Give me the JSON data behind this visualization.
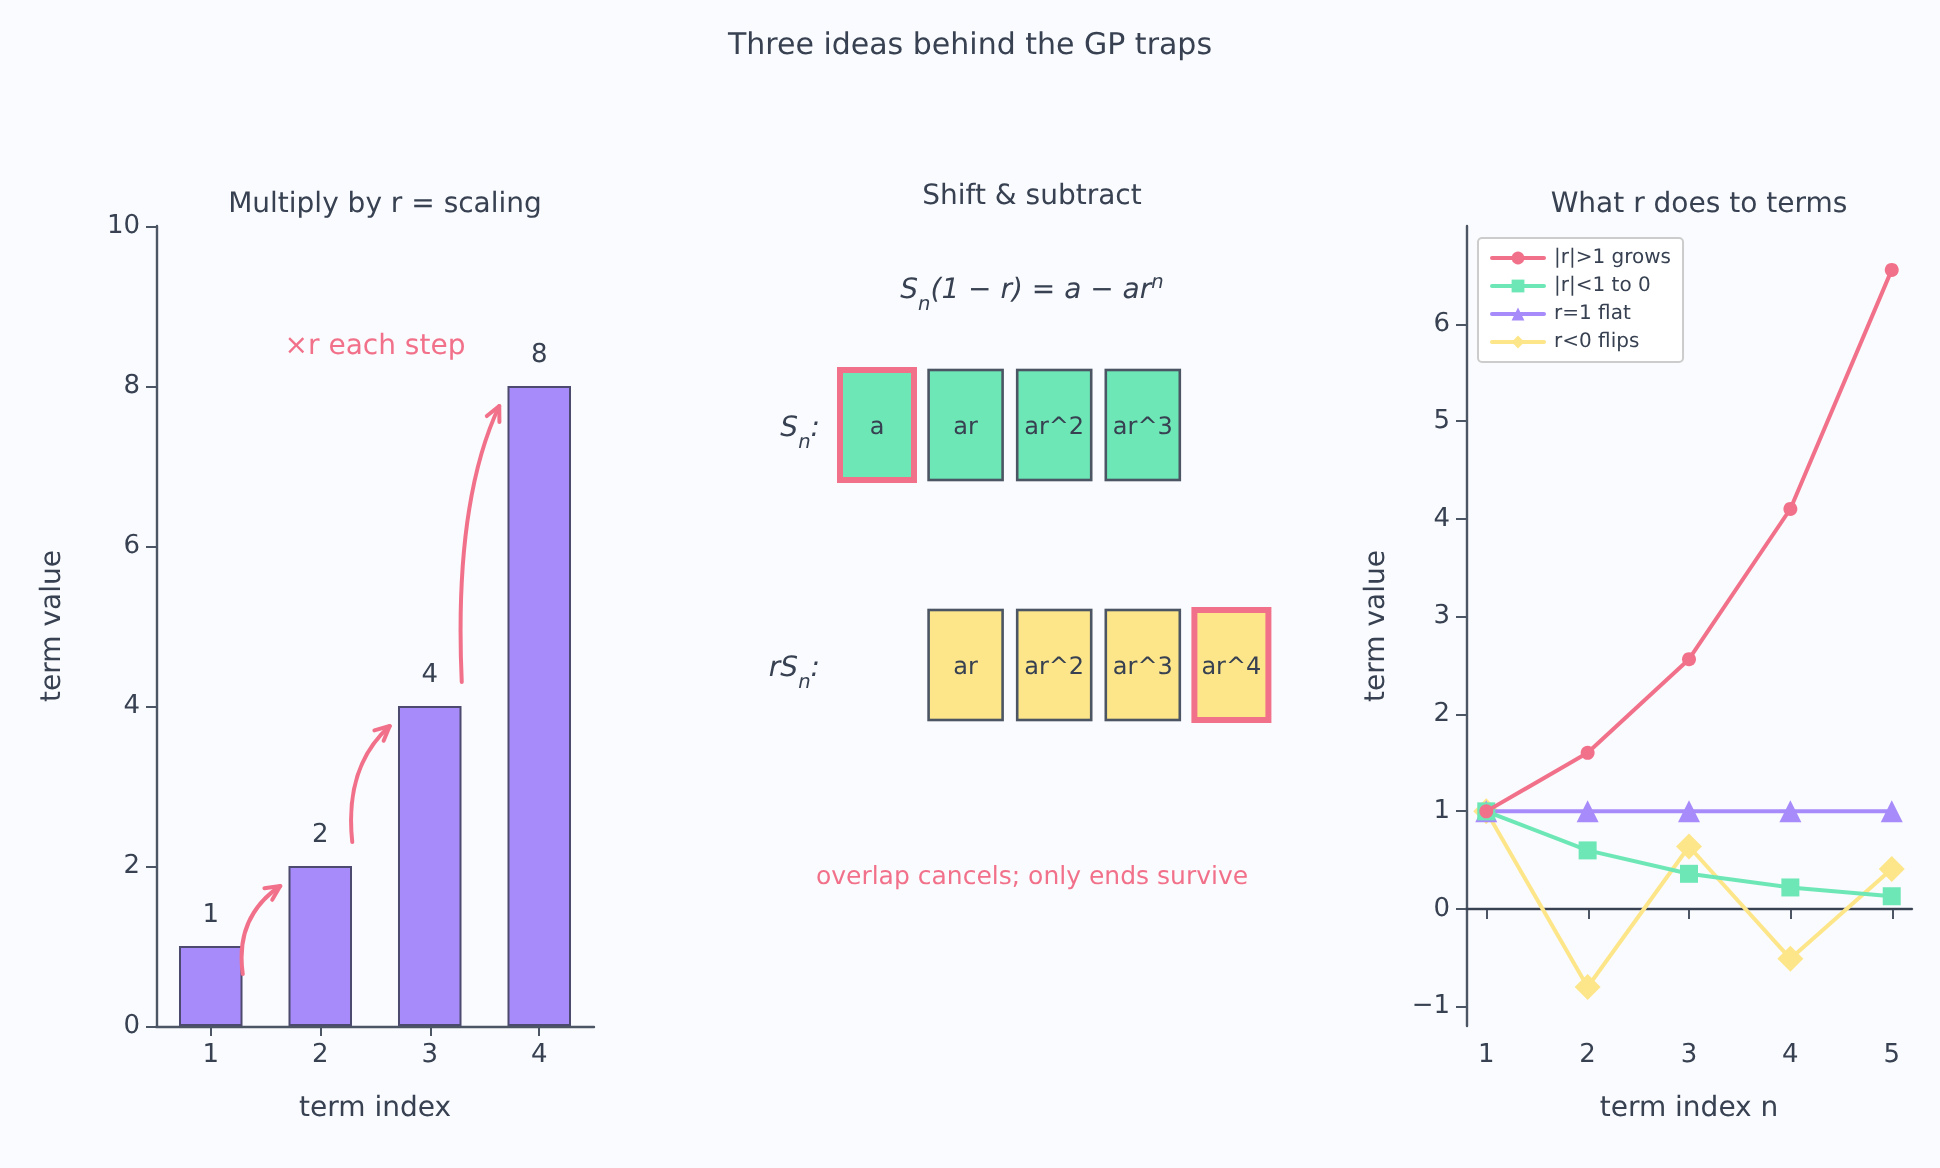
{
  "chart_data": [
    {
      "type": "other",
      "title": "Three ideas behind the GP traps"
    },
    {
      "type": "bar",
      "title": "Multiply by r = scaling",
      "xlabel": "term index",
      "ylabel": "term value",
      "categories": [
        "1",
        "2",
        "3",
        "4"
      ],
      "values": [
        1,
        2,
        4,
        8
      ],
      "color": "#a78bfa",
      "ylim": [
        0,
        10
      ],
      "yticks": [
        0,
        2,
        4,
        6,
        8,
        10
      ],
      "data_labels": true,
      "grid": false,
      "annotations": [
        "×r each step"
      ]
    },
    {
      "type": "other",
      "title": "Shift & subtract",
      "annotations": [
        "S$_{n}$(1 − r) = a − ar$^{n}$",
        "S$_{n}$:",
        "rS$_{n}$:",
        "a",
        "ar",
        "ar^2",
        "ar^3",
        "ar",
        "ar^2",
        "ar^3",
        "ar^4",
        "overlap cancels; only ends survive"
      ]
    },
    {
      "type": "line",
      "title": "What r does to terms",
      "xlabel": "term index n",
      "ylabel": "term value",
      "x": [
        1,
        2,
        3,
        4,
        5
      ],
      "series": [
        {
          "name": "|r|>1 grows",
          "color": "#f2718a",
          "marker": "circle",
          "values": [
            1,
            1.6,
            2.56,
            4.1,
            6.55
          ]
        },
        {
          "name": "|r|<1 to 0",
          "color": "#6ee7b7",
          "marker": "square",
          "values": [
            1,
            0.6,
            0.36,
            0.22,
            0.13
          ]
        },
        {
          "name": "r=1 flat",
          "color": "#a78bfa",
          "marker": "triangle",
          "values": [
            1,
            1,
            1,
            1,
            1
          ]
        },
        {
          "name": "r<0 flips",
          "color": "#fde68a",
          "marker": "diamond",
          "values": [
            1,
            -0.8,
            0.64,
            -0.51,
            0.41
          ]
        }
      ],
      "xlim": [
        0.8,
        5.2
      ],
      "xticks": [
        1,
        2,
        3,
        4,
        5
      ],
      "ylim": [
        -1.2,
        7
      ],
      "yticks": [
        {
          "value": -1,
          "label": "−1"
        },
        0,
        1,
        2,
        3,
        4,
        5,
        6
      ],
      "legend": "top left",
      "grid": false,
      "ref_lines": [
        {
          "axis": "y",
          "value": 0,
          "color": "#374151"
        }
      ]
    }
  ]
}
